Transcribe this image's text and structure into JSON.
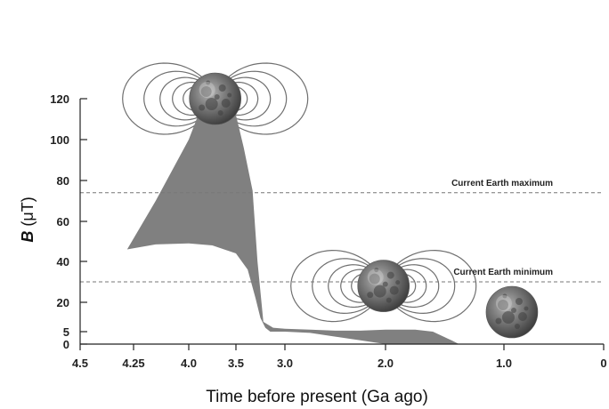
{
  "chart_data": {
    "type": "area",
    "xlabel": "Time before present (Ga ago)",
    "ylabel_symbol": "B",
    "ylabel_unit": "(μT)",
    "x_ticks": [
      {
        "value": 4.5,
        "label": "4.5"
      },
      {
        "value": 4.25,
        "label": "4.25"
      },
      {
        "value": 4.0,
        "label": "4.0"
      },
      {
        "value": 3.5,
        "label": "3.5"
      },
      {
        "value": 3.0,
        "label": "3.0"
      },
      {
        "value": 2.0,
        "label": "2.0"
      },
      {
        "value": 1.0,
        "label": "1.0"
      },
      {
        "value": 0,
        "label": "0"
      }
    ],
    "y_ticks": [
      {
        "value": 0,
        "label": "0"
      },
      {
        "value": 5,
        "label": "5"
      },
      {
        "value": 20,
        "label": "20"
      },
      {
        "value": 40,
        "label": "40"
      },
      {
        "value": 60,
        "label": "60"
      },
      {
        "value": 80,
        "label": "80"
      },
      {
        "value": 100,
        "label": "100"
      },
      {
        "value": 120,
        "label": "120"
      }
    ],
    "ylim": [
      0,
      120
    ],
    "grid": false,
    "band": {
      "upper": [
        [
          4.28,
          46
        ],
        [
          4.15,
          70
        ],
        [
          4.0,
          100
        ],
        [
          3.9,
          112
        ],
        [
          3.78,
          117
        ],
        [
          3.62,
          119
        ],
        [
          3.55,
          120
        ],
        [
          3.5,
          112
        ],
        [
          3.42,
          96
        ],
        [
          3.33,
          75
        ],
        [
          3.28,
          40
        ],
        [
          3.22,
          10
        ],
        [
          3.12,
          7
        ],
        [
          3.0,
          6.5
        ],
        [
          2.75,
          6
        ],
        [
          2.5,
          5.5
        ],
        [
          2.25,
          5.5
        ],
        [
          2.0,
          6
        ],
        [
          1.75,
          6
        ],
        [
          1.6,
          5
        ],
        [
          1.42,
          1
        ],
        [
          1.38,
          0
        ]
      ],
      "lower": [
        [
          1.38,
          0
        ],
        [
          1.5,
          0
        ],
        [
          1.75,
          0
        ],
        [
          2.0,
          0
        ],
        [
          2.25,
          1.5
        ],
        [
          2.5,
          3
        ],
        [
          2.75,
          4.5
        ],
        [
          3.0,
          5
        ],
        [
          3.15,
          5
        ],
        [
          3.2,
          7
        ],
        [
          3.25,
          12
        ],
        [
          3.3,
          22
        ],
        [
          3.38,
          36
        ],
        [
          3.5,
          44
        ],
        [
          3.75,
          48
        ],
        [
          4.0,
          49
        ],
        [
          4.15,
          48.5
        ],
        [
          4.28,
          46
        ]
      ]
    },
    "reference_lines": [
      {
        "label": "Current Earth maximum",
        "value": 74
      },
      {
        "label": "Current Earth minimum",
        "value": 30
      }
    ],
    "moon_icons": [
      {
        "name": "moon-with-strong-field-icon",
        "x": 3.72,
        "y": 134,
        "field": "strong"
      },
      {
        "name": "moon-with-weak-field-icon",
        "x": 2.02,
        "y": 28,
        "field": "weak"
      },
      {
        "name": "moon-without-field-icon",
        "x": 0.92,
        "y": 15,
        "field": "none"
      }
    ],
    "colors": {
      "band": "#808080",
      "axis": "#222222",
      "reference": "#777777",
      "field": "#6f6f6f"
    }
  }
}
